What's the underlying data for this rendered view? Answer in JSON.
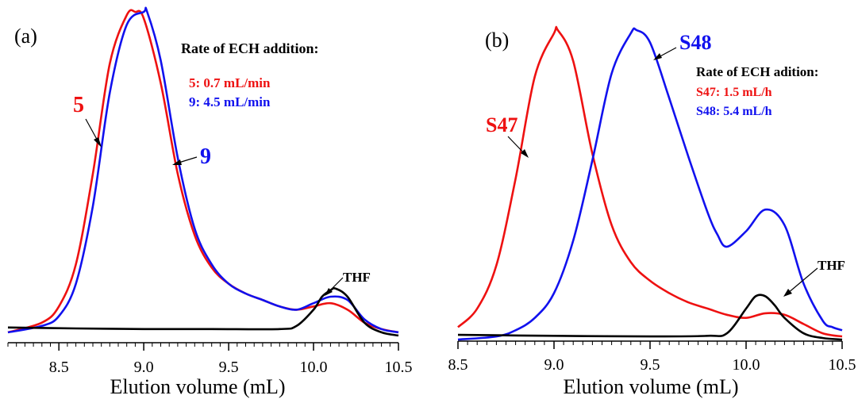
{
  "chart_data": [
    {
      "type": "line",
      "panel_label": "(a)",
      "xlabel": "Elution volume (mL)",
      "xlim": [
        8.2,
        10.5
      ],
      "xticks": [
        "8.5",
        "9.0",
        "9.5",
        "10.0",
        "10.5"
      ],
      "legend_title": "Rate of ECH addition:",
      "legend_entries": [
        {
          "text": "5: 0.7 mL/min",
          "color": "#ee1111"
        },
        {
          "text": "9: 4.5 mL/min",
          "color": "#1111ee"
        }
      ],
      "annotations": [
        {
          "text": "5",
          "color": "#ee1111"
        },
        {
          "text": "9",
          "color": "#1111ee"
        },
        {
          "text": "THF",
          "color": "#000000"
        }
      ],
      "series": [
        {
          "name": "5",
          "color": "#ee1111",
          "x": [
            8.2,
            8.4,
            8.5,
            8.6,
            8.7,
            8.8,
            8.9,
            8.95,
            9.0,
            9.1,
            9.2,
            9.3,
            9.4,
            9.5,
            9.6,
            9.7,
            9.8,
            9.9,
            10.0,
            10.1,
            10.2,
            10.3,
            10.4,
            10.5
          ],
          "y": [
            0.01,
            0.04,
            0.09,
            0.22,
            0.5,
            0.84,
            0.99,
            1.0,
            0.98,
            0.78,
            0.5,
            0.31,
            0.21,
            0.16,
            0.13,
            0.11,
            0.09,
            0.08,
            0.09,
            0.1,
            0.08,
            0.04,
            0.02,
            0.01
          ]
        },
        {
          "name": "9",
          "color": "#1111ee",
          "x": [
            8.2,
            8.4,
            8.5,
            8.6,
            8.7,
            8.8,
            8.9,
            9.0,
            9.02,
            9.1,
            9.2,
            9.3,
            9.4,
            9.5,
            9.6,
            9.7,
            9.8,
            9.9,
            10.0,
            10.1,
            10.2,
            10.3,
            10.4,
            10.5
          ],
          "y": [
            0.01,
            0.03,
            0.06,
            0.16,
            0.4,
            0.75,
            0.96,
            1.0,
            1.0,
            0.85,
            0.55,
            0.33,
            0.22,
            0.16,
            0.13,
            0.11,
            0.09,
            0.08,
            0.1,
            0.12,
            0.11,
            0.05,
            0.02,
            0.01
          ]
        },
        {
          "name": "THF",
          "color": "#000000",
          "x": [
            8.2,
            8.6,
            9.0,
            9.4,
            9.8,
            9.9,
            10.0,
            10.05,
            10.1,
            10.13,
            10.2,
            10.3,
            10.4,
            10.5
          ],
          "y": [
            0.025,
            0.022,
            0.02,
            0.02,
            0.02,
            0.03,
            0.08,
            0.12,
            0.14,
            0.145,
            0.12,
            0.04,
            0.01,
            0.0
          ]
        }
      ]
    },
    {
      "type": "line",
      "panel_label": "(b)",
      "xlabel": "Elution volume (mL)",
      "xlim": [
        8.5,
        10.5
      ],
      "xticks": [
        "8.5",
        "9.0",
        "9.5",
        "10.0",
        "10.5"
      ],
      "legend_title": "Rate of ECH adition:",
      "legend_entries": [
        {
          "text": "S47: 1.5 mL/h",
          "color": "#ee1111"
        },
        {
          "text": "S48: 5.4 mL/h",
          "color": "#1111ee"
        }
      ],
      "annotations": [
        {
          "text": "S47",
          "color": "#ee1111"
        },
        {
          "text": "S48",
          "color": "#1111ee"
        },
        {
          "text": "THF",
          "color": "#000000"
        }
      ],
      "series": [
        {
          "name": "S47",
          "color": "#ee1111",
          "x": [
            8.5,
            8.6,
            8.7,
            8.8,
            8.9,
            9.0,
            9.02,
            9.1,
            9.2,
            9.3,
            9.4,
            9.5,
            9.6,
            9.7,
            9.8,
            9.9,
            10.0,
            10.1,
            10.2,
            10.3,
            10.4,
            10.5
          ],
          "y": [
            0.04,
            0.1,
            0.24,
            0.52,
            0.85,
            0.99,
            1.0,
            0.9,
            0.6,
            0.37,
            0.25,
            0.19,
            0.15,
            0.12,
            0.1,
            0.08,
            0.07,
            0.085,
            0.08,
            0.05,
            0.02,
            0.01
          ]
        },
        {
          "name": "S48",
          "color": "#1111ee",
          "x": [
            8.5,
            8.7,
            8.8,
            8.9,
            9.0,
            9.1,
            9.2,
            9.3,
            9.4,
            9.43,
            9.5,
            9.6,
            9.7,
            9.8,
            9.85,
            9.9,
            10.0,
            10.1,
            10.2,
            10.3,
            10.4,
            10.45,
            10.5
          ],
          "y": [
            0.0,
            0.01,
            0.03,
            0.07,
            0.15,
            0.32,
            0.58,
            0.86,
            0.99,
            1.0,
            0.96,
            0.78,
            0.59,
            0.41,
            0.34,
            0.3,
            0.35,
            0.42,
            0.37,
            0.18,
            0.06,
            0.04,
            0.03
          ]
        },
        {
          "name": "THF",
          "color": "#000000",
          "x": [
            8.5,
            9.0,
            9.5,
            9.8,
            9.9,
            10.0,
            10.05,
            10.1,
            10.15,
            10.2,
            10.3,
            10.4,
            10.5
          ],
          "y": [
            0.015,
            0.012,
            0.01,
            0.012,
            0.02,
            0.1,
            0.14,
            0.14,
            0.11,
            0.07,
            0.02,
            0.005,
            0.0
          ]
        }
      ]
    }
  ]
}
